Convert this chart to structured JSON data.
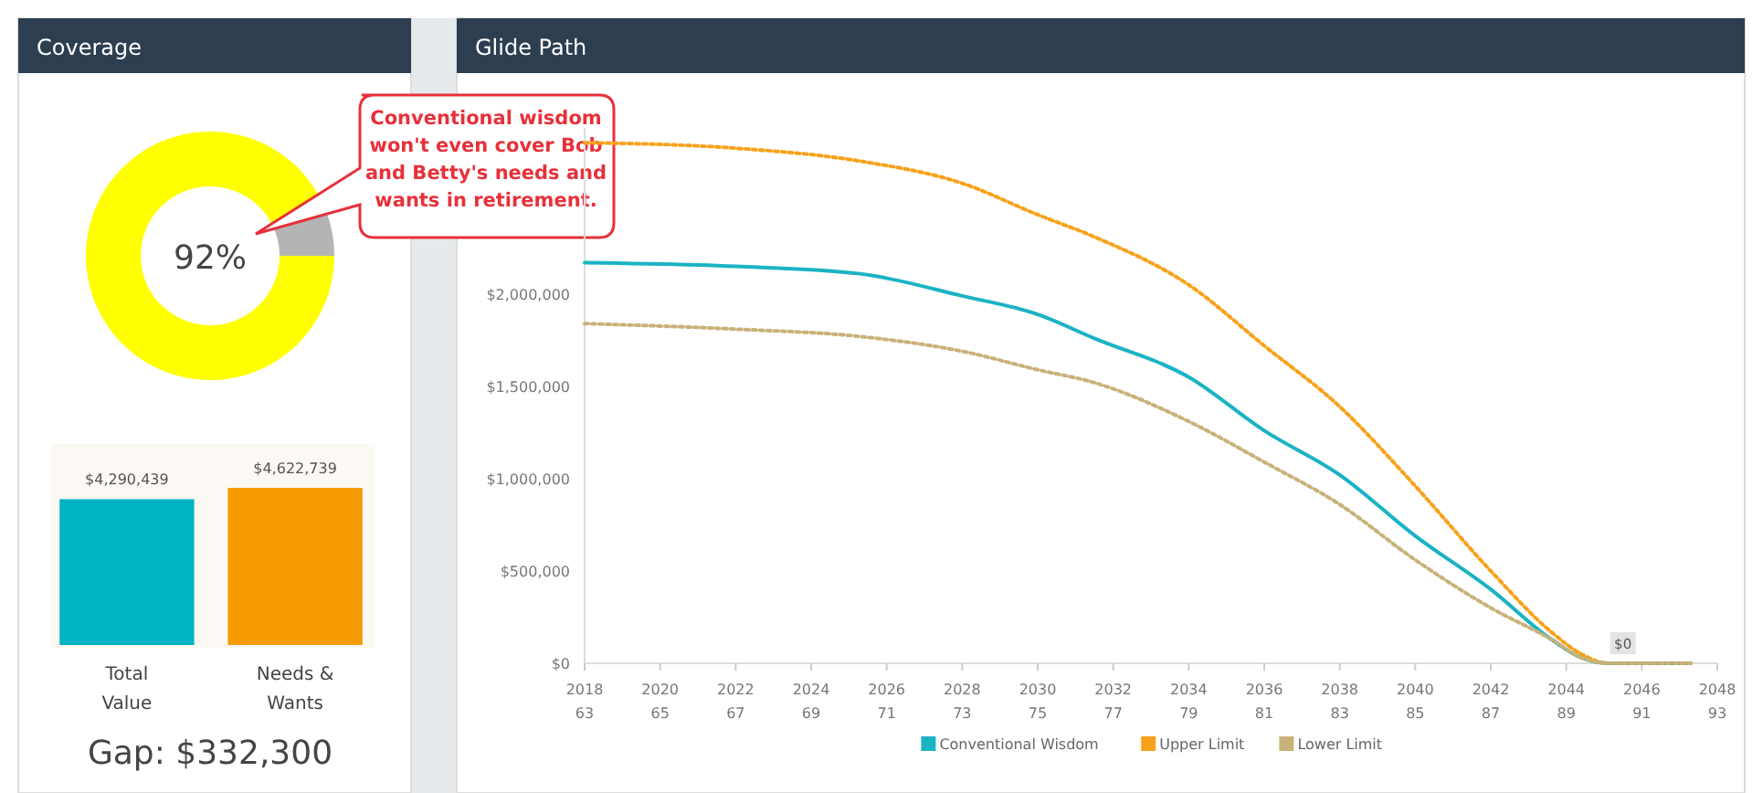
{
  "chart_data": [
    {
      "type": "donut",
      "title": "Coverage",
      "categories": [
        null,
        null
      ],
      "values": [
        92,
        8
      ],
      "colors": [
        "#ffff00",
        "#b4b4b4"
      ],
      "value_labels": [
        "92%",
        null
      ],
      "annotations": [
        "Conventional wisdom won't even cover Bob and Betty's needs and wants in retirement."
      ]
    },
    {
      "type": "bar",
      "categories": [
        "Total Value",
        "Needs & Wants"
      ],
      "values": [
        4290439,
        4622739
      ],
      "colors": [
        "#00b3c4",
        "#f59b00"
      ],
      "value_labels": [
        "$4,290,439",
        "$4,622,739"
      ],
      "annotations": [
        "Gap: $332,300"
      ]
    },
    {
      "type": "line",
      "title": "Glide Path",
      "xlim": [
        2018,
        2048
      ],
      "ylim": [
        0,
        2900000
      ],
      "xticks": [
        2018,
        2020,
        2022,
        2024,
        2026,
        2028,
        2030,
        2032,
        2034,
        2036,
        2038,
        2040,
        2042,
        2044,
        2046,
        2048
      ],
      "x2lim": [
        63,
        93
      ],
      "x2ticks": [
        63,
        65,
        67,
        69,
        71,
        73,
        75,
        77,
        79,
        81,
        83,
        85,
        87,
        89,
        91,
        93
      ],
      "yticks": [
        {
          "value": 0,
          "label": "$0"
        },
        {
          "value": 500000,
          "label": "$500,000"
        },
        {
          "value": 1000000,
          "label": "$1,000,000"
        },
        {
          "value": 1500000,
          "label": "$1,500,000"
        },
        {
          "value": 2000000,
          "label": "$2,000,000"
        }
      ],
      "x": [
        2018,
        2022,
        2025.3,
        2028,
        2030,
        2031.5,
        2034,
        2036,
        2038,
        2040,
        2042,
        2043.6,
        2044.4,
        2045.1,
        2047.3
      ],
      "series": [
        {
          "name": "Conventional Wisdom",
          "color": "#1ab3c4",
          "line_style": "solid",
          "values": [
            2170000,
            2150000,
            2110000,
            1990000,
            1890000,
            1760000,
            1550000,
            1260000,
            1020000,
            690000,
            400000,
            130000,
            30000,
            0,
            0
          ]
        },
        {
          "name": "Upper Limit",
          "color": "#f7a21b",
          "line_style": "dotted",
          "values": [
            2820000,
            2790000,
            2720000,
            2600000,
            2430000,
            2310000,
            2050000,
            1720000,
            1390000,
            960000,
            500000,
            170000,
            50000,
            0,
            0
          ]
        },
        {
          "name": "Lower Limit",
          "color": "#c8b27a",
          "line_style": "dotted",
          "values": [
            1840000,
            1810000,
            1770000,
            1690000,
            1590000,
            1520000,
            1310000,
            1090000,
            860000,
            560000,
            300000,
            130000,
            30000,
            0,
            0
          ]
        }
      ],
      "legend": "bottom",
      "grid": false,
      "annotations": [
        {
          "text": "$0",
          "x": 2045.5,
          "y": 0
        }
      ]
    }
  ]
}
